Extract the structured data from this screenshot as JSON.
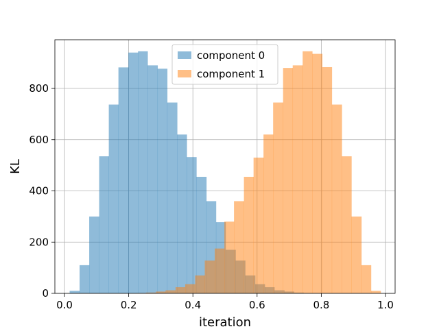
{
  "chart_data": {
    "type": "histogram",
    "xlabel": "iteration",
    "ylabel": "KL",
    "xlim": [
      -0.03,
      1.03
    ],
    "ylim": [
      0,
      990
    ],
    "xticks": [
      0.0,
      0.2,
      0.4,
      0.6,
      0.8,
      1.0
    ],
    "xtick_labels": [
      "0.0",
      "0.2",
      "0.4",
      "0.6",
      "0.8",
      "1.0"
    ],
    "yticks": [
      0,
      200,
      400,
      600,
      800
    ],
    "ytick_labels": [
      "0",
      "200",
      "400",
      "600",
      "800"
    ],
    "grid": true,
    "legend_position": "upper-center",
    "series": [
      {
        "name": "component 0",
        "color": "#1f77b4",
        "alpha": 0.5,
        "bin_edges": [
          0.016,
          0.047,
          0.077,
          0.108,
          0.138,
          0.168,
          0.199,
          0.229,
          0.259,
          0.29,
          0.32,
          0.351,
          0.381,
          0.411,
          0.442,
          0.472,
          0.502,
          0.533,
          0.563,
          0.594,
          0.624,
          0.654,
          0.685,
          0.715,
          0.745,
          0.776
        ],
        "counts": [
          10,
          110,
          300,
          535,
          737,
          882,
          940,
          945,
          890,
          877,
          745,
          620,
          532,
          455,
          360,
          278,
          170,
          128,
          70,
          36,
          24,
          12,
          7,
          3,
          1
        ]
      },
      {
        "name": "component 1",
        "color": "#ff7f0e",
        "alpha": 0.5,
        "bin_edges": [
          0.224,
          0.254,
          0.285,
          0.315,
          0.346,
          0.376,
          0.407,
          0.437,
          0.468,
          0.498,
          0.528,
          0.559,
          0.589,
          0.62,
          0.65,
          0.681,
          0.711,
          0.742,
          0.772,
          0.803,
          0.833,
          0.864,
          0.894,
          0.925,
          0.955,
          0.985
        ],
        "counts": [
          1,
          3,
          7,
          12,
          24,
          36,
          70,
          128,
          175,
          280,
          360,
          455,
          530,
          620,
          745,
          880,
          890,
          945,
          935,
          883,
          737,
          535,
          300,
          110,
          10
        ]
      }
    ]
  }
}
